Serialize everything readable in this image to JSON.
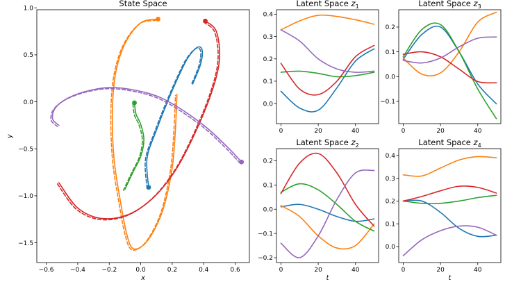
{
  "colors": {
    "blue": "#1f77b4",
    "orange": "#ff7f0e",
    "green": "#2ca02c",
    "red": "#d62728",
    "purple": "#9467bd"
  },
  "chart_data": [
    {
      "id": "state",
      "type": "line",
      "title": "State Space",
      "xlabel": "x",
      "ylabel": "y",
      "xlim": [
        -0.66,
        0.69
      ],
      "ylim": [
        -1.71,
        0.98
      ],
      "xticks": [
        -0.6,
        -0.4,
        -0.2,
        0.0,
        0.2,
        0.4,
        0.6
      ],
      "xtick_labels": [
        "−0.6",
        "−0.4",
        "−0.2",
        "0.0",
        "0.2",
        "0.4",
        "0.6"
      ],
      "yticks": [
        -1.5,
        -1.0,
        -0.5,
        0.0,
        0.5,
        1.0
      ],
      "ytick_labels": [
        "−1.5",
        "−1.0",
        "−0.5",
        "0.0",
        "0.5",
        "1.0"
      ],
      "dashed_companion": true,
      "series": [
        {
          "color": "blue",
          "start": [
            0.05,
            -0.91
          ],
          "points": [
            [
              0.05,
              -0.91
            ],
            [
              0.04,
              -0.6
            ],
            [
              0.1,
              -0.3
            ],
            [
              0.17,
              0.0
            ],
            [
              0.24,
              0.27
            ],
            [
              0.3,
              0.47
            ],
            [
              0.36,
              0.58
            ],
            [
              0.39,
              0.55
            ],
            [
              0.38,
              0.4
            ],
            [
              0.33,
              0.19
            ]
          ]
        },
        {
          "color": "orange",
          "start": [
            0.11,
            0.88
          ],
          "points": [
            [
              0.11,
              0.88
            ],
            [
              0.0,
              0.84
            ],
            [
              -0.1,
              0.62
            ],
            [
              -0.16,
              0.3
            ],
            [
              -0.18,
              -0.1
            ],
            [
              -0.17,
              -0.6
            ],
            [
              -0.13,
              -1.05
            ],
            [
              -0.09,
              -1.4
            ],
            [
              -0.05,
              -1.56
            ],
            [
              0.02,
              -1.52
            ],
            [
              0.09,
              -1.35
            ],
            [
              0.15,
              -1.1
            ],
            [
              0.2,
              -0.7
            ],
            [
              0.22,
              -0.3
            ],
            [
              0.23,
              0.08
            ]
          ]
        },
        {
          "color": "green",
          "start": [
            -0.04,
            -0.01
          ],
          "points": [
            [
              -0.04,
              -0.01
            ],
            [
              -0.03,
              -0.13
            ],
            [
              0.0,
              -0.24
            ],
            [
              0.02,
              -0.4
            ],
            [
              0.0,
              -0.58
            ],
            [
              -0.05,
              -0.75
            ],
            [
              -0.1,
              -0.93
            ]
          ]
        },
        {
          "color": "red",
          "start": [
            0.41,
            0.86
          ],
          "points": [
            [
              0.41,
              0.86
            ],
            [
              0.48,
              0.75
            ],
            [
              0.5,
              0.45
            ],
            [
              0.45,
              0.1
            ],
            [
              0.34,
              -0.35
            ],
            [
              0.22,
              -0.73
            ],
            [
              0.08,
              -1.02
            ],
            [
              -0.08,
              -1.2
            ],
            [
              -0.25,
              -1.24
            ],
            [
              -0.4,
              -1.13
            ],
            [
              -0.52,
              -0.86
            ]
          ]
        },
        {
          "color": "purple",
          "start": [
            0.64,
            -0.64
          ],
          "points": [
            [
              0.64,
              -0.64
            ],
            [
              0.55,
              -0.48
            ],
            [
              0.4,
              -0.25
            ],
            [
              0.2,
              -0.02
            ],
            [
              0.05,
              0.09
            ],
            [
              -0.15,
              0.15
            ],
            [
              -0.3,
              0.13
            ],
            [
              -0.45,
              0.05
            ],
            [
              -0.54,
              -0.06
            ],
            [
              -0.56,
              -0.18
            ],
            [
              -0.52,
              -0.25
            ]
          ]
        }
      ]
    },
    {
      "id": "z1",
      "type": "line",
      "title": "Latent Space z",
      "title_sub": "1",
      "xlabel": "",
      "xlim": [
        -2.4,
        52.4
      ],
      "ylim": [
        -0.09,
        0.42
      ],
      "xticks": [
        0,
        20,
        40
      ],
      "xtick_labels": [
        "0",
        "20",
        "40"
      ],
      "yticks": [
        0.0,
        0.1,
        0.2,
        0.3,
        0.4
      ],
      "ytick_labels": [
        "0.0",
        "0.1",
        "0.2",
        "0.3",
        "0.4"
      ],
      "x": [
        0,
        10,
        20,
        30,
        40,
        50
      ],
      "series": [
        {
          "color": "blue",
          "values": [
            0.055,
            -0.02,
            -0.03,
            0.07,
            0.19,
            0.245
          ]
        },
        {
          "color": "orange",
          "values": [
            0.33,
            0.37,
            0.395,
            0.39,
            0.375,
            0.355
          ]
        },
        {
          "color": "green",
          "values": [
            0.14,
            0.145,
            0.135,
            0.12,
            0.125,
            0.14
          ]
        },
        {
          "color": "red",
          "values": [
            0.18,
            0.065,
            0.04,
            0.1,
            0.21,
            0.26
          ]
        },
        {
          "color": "purple",
          "values": [
            0.33,
            0.28,
            0.2,
            0.155,
            0.14,
            0.145
          ]
        }
      ]
    },
    {
      "id": "z3",
      "type": "line",
      "title": "Latent Space z",
      "title_sub": "3",
      "xlabel": "",
      "xlim": [
        -2.4,
        52.4
      ],
      "ylim": [
        -0.19,
        0.27
      ],
      "xticks": [
        0,
        20,
        40
      ],
      "xtick_labels": [
        "0",
        "20",
        "40"
      ],
      "yticks": [
        -0.1,
        0.0,
        0.1,
        0.2
      ],
      "ytick_labels": [
        "−0.1",
        "0.0",
        "0.1",
        "0.2"
      ],
      "x": [
        0,
        10,
        20,
        30,
        40,
        50
      ],
      "series": [
        {
          "color": "blue",
          "values": [
            0.07,
            0.17,
            0.2,
            0.1,
            -0.03,
            -0.11
          ]
        },
        {
          "color": "orange",
          "values": [
            0.075,
            0.01,
            0.015,
            0.1,
            0.22,
            0.26
          ]
        },
        {
          "color": "green",
          "values": [
            0.08,
            0.19,
            0.21,
            0.1,
            -0.05,
            -0.17
          ]
        },
        {
          "color": "red",
          "values": [
            0.09,
            0.1,
            0.08,
            0.03,
            -0.02,
            -0.025
          ]
        },
        {
          "color": "purple",
          "values": [
            0.065,
            0.055,
            0.075,
            0.12,
            0.155,
            0.16
          ]
        }
      ]
    },
    {
      "id": "z2",
      "type": "line",
      "title": "Latent Space z",
      "title_sub": "2",
      "xlabel": "t",
      "xlim": [
        -2.4,
        52.4
      ],
      "ylim": [
        -0.22,
        0.25
      ],
      "xticks": [
        0,
        20,
        40
      ],
      "xtick_labels": [
        "0",
        "20",
        "40"
      ],
      "yticks": [
        -0.2,
        -0.1,
        0.0,
        0.1,
        0.2
      ],
      "ytick_labels": [
        "−0.2",
        "−0.1",
        "0.0",
        "0.1",
        "0.2"
      ],
      "x": [
        0,
        10,
        20,
        30,
        40,
        50
      ],
      "series": [
        {
          "color": "blue",
          "values": [
            0.01,
            0.02,
            0.0,
            -0.03,
            -0.05,
            -0.04
          ]
        },
        {
          "color": "orange",
          "values": [
            0.015,
            -0.03,
            -0.11,
            -0.16,
            -0.15,
            -0.06
          ]
        },
        {
          "color": "green",
          "values": [
            0.07,
            0.105,
            0.08,
            0.02,
            -0.05,
            -0.09
          ]
        },
        {
          "color": "red",
          "values": [
            0.065,
            0.19,
            0.23,
            0.15,
            0.02,
            -0.07
          ]
        },
        {
          "color": "purple",
          "values": [
            -0.14,
            -0.2,
            -0.11,
            0.04,
            0.15,
            0.16
          ]
        }
      ]
    },
    {
      "id": "z4",
      "type": "line",
      "title": "Latent Space z",
      "title_sub": "4",
      "xlabel": "t",
      "xlim": [
        -2.4,
        52.4
      ],
      "ylim": [
        -0.07,
        0.43
      ],
      "xticks": [
        0,
        20,
        40
      ],
      "xtick_labels": [
        "0",
        "20",
        "40"
      ],
      "yticks": [
        0.0,
        0.1,
        0.2,
        0.3,
        0.4
      ],
      "ytick_labels": [
        "0.0",
        "0.1",
        "0.2",
        "0.3",
        "0.4"
      ],
      "x": [
        0,
        10,
        20,
        30,
        40,
        50
      ],
      "series": [
        {
          "color": "blue",
          "values": [
            0.2,
            0.2,
            0.15,
            0.08,
            0.045,
            0.05
          ]
        },
        {
          "color": "orange",
          "values": [
            0.315,
            0.31,
            0.345,
            0.38,
            0.395,
            0.39
          ]
        },
        {
          "color": "green",
          "values": [
            0.2,
            0.19,
            0.19,
            0.2,
            0.215,
            0.225
          ]
        },
        {
          "color": "red",
          "values": [
            0.2,
            0.22,
            0.245,
            0.265,
            0.26,
            0.235
          ]
        },
        {
          "color": "purple",
          "values": [
            -0.04,
            0.03,
            0.07,
            0.09,
            0.085,
            0.05
          ]
        }
      ]
    }
  ]
}
